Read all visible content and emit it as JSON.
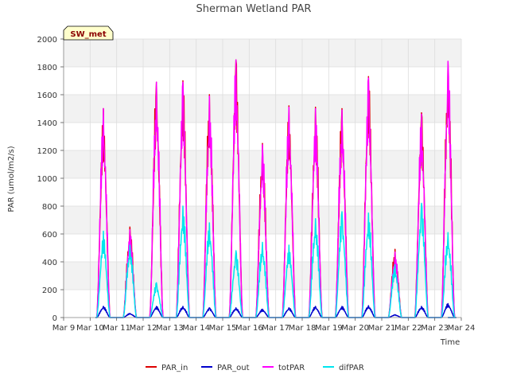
{
  "chart_data": {
    "type": "line",
    "title": "Sherman Wetland PAR",
    "xlabel": "Time",
    "ylabel": "PAR (umol/m2/s)",
    "station_badge": "SW_met",
    "xlim_days": [
      9,
      24
    ],
    "ylim": [
      0,
      2000
    ],
    "x_tick_labels": [
      "Mar 9",
      "Mar 10",
      "Mar 11",
      "Mar 12",
      "Mar 13",
      "Mar 14",
      "Mar 15",
      "Mar 16",
      "Mar 17",
      "Mar 18",
      "Mar 19",
      "Mar 20",
      "Mar 21",
      "Mar 22",
      "Mar 23",
      "Mar 24"
    ],
    "y_ticks": [
      0,
      200,
      400,
      600,
      800,
      1000,
      1200,
      1400,
      1600,
      1800,
      2000
    ],
    "grid": true,
    "legend_position": "bottom",
    "days": [
      9.5,
      10,
      11,
      12,
      13,
      14,
      15,
      16,
      17,
      18,
      19,
      20,
      21,
      22,
      23
    ],
    "series": [
      {
        "name": "PAR_in",
        "color": "#dd0000",
        "peaks": [
          1500,
          650,
          1690,
          1700,
          1600,
          1850,
          1250,
          1520,
          1510,
          1500,
          1730,
          490,
          1470,
          1820
        ],
        "peak_days": [
          10.15,
          11.15,
          12.15,
          13.15,
          14.15,
          15.15,
          16.15,
          17.15,
          18.15,
          19.15,
          20.15,
          21.15,
          22.15,
          23.15
        ]
      },
      {
        "name": "PAR_out",
        "color": "#0000cc",
        "peaks": [
          80,
          30,
          80,
          80,
          70,
          70,
          60,
          70,
          80,
          80,
          85,
          20,
          80,
          100
        ],
        "peak_days": [
          10.15,
          11.15,
          12.15,
          13.15,
          14.15,
          15.15,
          16.15,
          17.15,
          18.15,
          19.15,
          20.15,
          21.15,
          22.15,
          23.15
        ]
      },
      {
        "name": "totPAR",
        "color": "#ff00ff",
        "peaks": [
          1500,
          630,
          1690,
          1690,
          1590,
          1850,
          1240,
          1510,
          1500,
          1490,
          1720,
          470,
          1460,
          1840
        ],
        "peak_days": [
          10.15,
          11.15,
          12.15,
          13.15,
          14.15,
          15.15,
          16.15,
          17.15,
          18.15,
          19.15,
          20.15,
          21.15,
          22.15,
          23.15
        ]
      },
      {
        "name": "difPAR",
        "color": "#00e5ee",
        "peaks": [
          620,
          520,
          250,
          800,
          680,
          480,
          540,
          520,
          710,
          760,
          750,
          380,
          820,
          610
        ],
        "peak_days": [
          10.15,
          11.15,
          12.15,
          13.15,
          14.15,
          15.15,
          16.15,
          17.15,
          18.15,
          19.15,
          20.15,
          21.15,
          22.15,
          23.15
        ]
      }
    ]
  }
}
